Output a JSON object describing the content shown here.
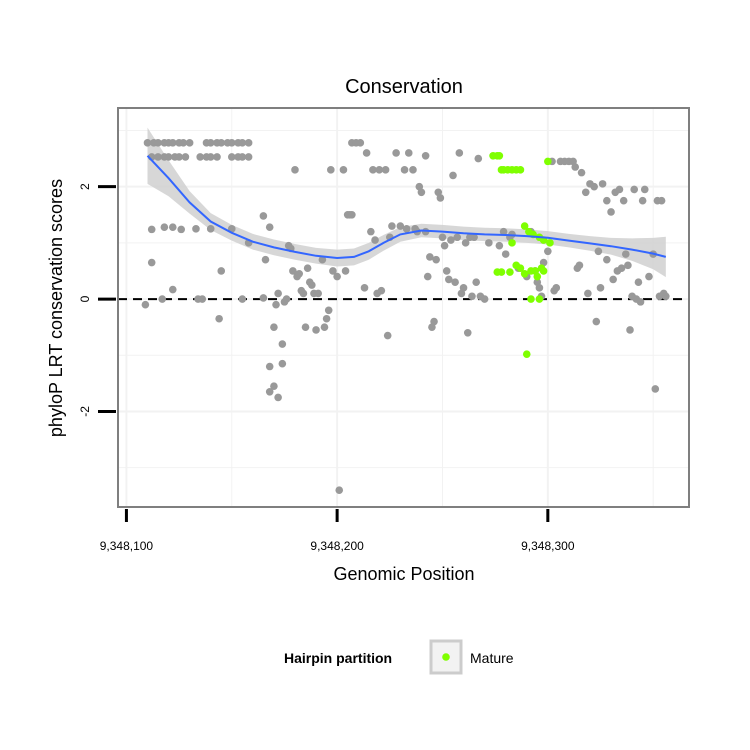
{
  "chart_data": {
    "type": "scatter",
    "title": "Conservation",
    "xlabel": "Genomic Position",
    "ylabel": "phyloP LRT conservation scores",
    "xlim": [
      9348096,
      9348367
    ],
    "ylim": [
      -3.7,
      3.4
    ],
    "x_ticks": [
      9348100,
      9348200,
      9348300
    ],
    "x_tick_labels": [
      "9,348,100",
      "9,348,200",
      "9,348,300"
    ],
    "y_ticks": [
      -2,
      0,
      2
    ],
    "y_tick_labels": [
      "-2",
      "0",
      "2"
    ],
    "grid": true,
    "reference_line": {
      "y": 0,
      "style": "dashed"
    },
    "legend": {
      "title": "Hairpin partition",
      "entries": [
        {
          "label": "Mature",
          "color": "#7fff00"
        }
      ],
      "placement": "bottom"
    },
    "colors": {
      "other": "#999999",
      "mature": "#7fff00",
      "smooth": "#3366ff",
      "ribbon": "#d0d0d0",
      "panel_border": "#7f7f7f",
      "grid": "#f2f2f2"
    },
    "series": [
      {
        "name": "Other",
        "points": [
          [
            9348110,
            2.78
          ],
          [
            9348113,
            2.78
          ],
          [
            9348115,
            2.78
          ],
          [
            9348118,
            2.78
          ],
          [
            9348120,
            2.78
          ],
          [
            9348122,
            2.78
          ],
          [
            9348125,
            2.78
          ],
          [
            9348127,
            2.78
          ],
          [
            9348130,
            2.78
          ],
          [
            9348138,
            2.78
          ],
          [
            9348140,
            2.78
          ],
          [
            9348143,
            2.78
          ],
          [
            9348145,
            2.78
          ],
          [
            9348148,
            2.78
          ],
          [
            9348150,
            2.78
          ],
          [
            9348153,
            2.78
          ],
          [
            9348155,
            2.78
          ],
          [
            9348158,
            2.78
          ],
          [
            9348112,
            2.53
          ],
          [
            9348115,
            2.53
          ],
          [
            9348118,
            2.53
          ],
          [
            9348120,
            2.53
          ],
          [
            9348123,
            2.53
          ],
          [
            9348125,
            2.53
          ],
          [
            9348128,
            2.53
          ],
          [
            9348135,
            2.53
          ],
          [
            9348138,
            2.53
          ],
          [
            9348140,
            2.53
          ],
          [
            9348143,
            2.53
          ],
          [
            9348150,
            2.53
          ],
          [
            9348153,
            2.53
          ],
          [
            9348155,
            2.53
          ],
          [
            9348158,
            2.53
          ],
          [
            9348165,
            1.48
          ],
          [
            9348168,
            1.28
          ],
          [
            9348122,
            1.28
          ],
          [
            9348126,
            1.24
          ],
          [
            9348112,
            1.24
          ],
          [
            9348118,
            1.28
          ],
          [
            9348133,
            1.25
          ],
          [
            9348140,
            1.25
          ],
          [
            9348150,
            1.25
          ],
          [
            9348158,
            1.0
          ],
          [
            9348112,
            0.65
          ],
          [
            9348117,
            0.0
          ],
          [
            9348122,
            0.17
          ],
          [
            9348134,
            0.0
          ],
          [
            9348136,
            0.0
          ],
          [
            9348144,
            -0.35
          ],
          [
            9348145,
            0.5
          ],
          [
            9348109,
            -0.1
          ],
          [
            9348155,
            0.0
          ],
          [
            9348165,
            0.02
          ],
          [
            9348166,
            0.7
          ],
          [
            9348172,
            0.1
          ],
          [
            9348168,
            -1.2
          ],
          [
            9348170,
            -1.55
          ],
          [
            9348168,
            -1.65
          ],
          [
            9348172,
            -1.75
          ],
          [
            9348170,
            -0.5
          ],
          [
            9348174,
            -0.8
          ],
          [
            9348174,
            -1.15
          ],
          [
            9348171,
            -0.1
          ],
          [
            9348175,
            -0.05
          ],
          [
            9348176,
            0.0
          ],
          [
            9348177,
            0.95
          ],
          [
            9348178,
            0.9
          ],
          [
            9348179,
            0.5
          ],
          [
            9348180,
            2.3
          ],
          [
            9348181,
            0.4
          ],
          [
            9348182,
            0.45
          ],
          [
            9348183,
            0.15
          ],
          [
            9348184,
            0.1
          ],
          [
            9348185,
            -0.5
          ],
          [
            9348186,
            0.55
          ],
          [
            9348187,
            0.3
          ],
          [
            9348188,
            0.25
          ],
          [
            9348189,
            0.1
          ],
          [
            9348190,
            -0.55
          ],
          [
            9348191,
            0.1
          ],
          [
            9348193,
            0.7
          ],
          [
            9348194,
            -0.5
          ],
          [
            9348195,
            -0.35
          ],
          [
            9348196,
            -0.2
          ],
          [
            9348197,
            2.3
          ],
          [
            9348198,
            0.5
          ],
          [
            9348200,
            0.4
          ],
          [
            9348203,
            2.3
          ],
          [
            9348201,
            -3.4
          ],
          [
            9348204,
            0.5
          ],
          [
            9348205,
            1.5
          ],
          [
            9348206,
            1.5
          ],
          [
            9348207,
            1.5
          ],
          [
            9348207,
            2.78
          ],
          [
            9348209,
            2.78
          ],
          [
            9348211,
            2.78
          ],
          [
            9348213,
            0.2
          ],
          [
            9348214,
            2.6
          ],
          [
            9348216,
            1.2
          ],
          [
            9348217,
            2.3
          ],
          [
            9348218,
            1.05
          ],
          [
            9348219,
            0.1
          ],
          [
            9348220,
            2.3
          ],
          [
            9348221,
            0.15
          ],
          [
            9348223,
            2.3
          ],
          [
            9348224,
            -0.65
          ],
          [
            9348225,
            1.1
          ],
          [
            9348226,
            1.3
          ],
          [
            9348228,
            2.6
          ],
          [
            9348230,
            1.3
          ],
          [
            9348232,
            2.3
          ],
          [
            9348233,
            1.25
          ],
          [
            9348234,
            2.6
          ],
          [
            9348236,
            2.3
          ],
          [
            9348237,
            1.25
          ],
          [
            9348238,
            1.2
          ],
          [
            9348239,
            2.0
          ],
          [
            9348240,
            1.9
          ],
          [
            9348242,
            1.2
          ],
          [
            9348242,
            2.55
          ],
          [
            9348243,
            0.4
          ],
          [
            9348244,
            0.75
          ],
          [
            9348245,
            -0.5
          ],
          [
            9348246,
            -0.4
          ],
          [
            9348247,
            0.7
          ],
          [
            9348248,
            1.9
          ],
          [
            9348249,
            1.8
          ],
          [
            9348250,
            1.1
          ],
          [
            9348251,
            0.95
          ],
          [
            9348252,
            0.5
          ],
          [
            9348253,
            0.35
          ],
          [
            9348254,
            1.05
          ],
          [
            9348255,
            2.2
          ],
          [
            9348256,
            0.3
          ],
          [
            9348257,
            1.1
          ],
          [
            9348258,
            2.6
          ],
          [
            9348259,
            0.1
          ],
          [
            9348260,
            0.2
          ],
          [
            9348261,
            1.0
          ],
          [
            9348262,
            -0.6
          ],
          [
            9348263,
            1.1
          ],
          [
            9348264,
            0.05
          ],
          [
            9348265,
            1.1
          ],
          [
            9348266,
            0.3
          ],
          [
            9348267,
            2.5
          ],
          [
            9348268,
            0.05
          ],
          [
            9348270,
            0.0
          ],
          [
            9348272,
            1.0
          ],
          [
            9348277,
            0.95
          ],
          [
            9348279,
            1.2
          ],
          [
            9348280,
            0.8
          ],
          [
            9348282,
            1.1
          ],
          [
            9348283,
            1.15
          ],
          [
            9348286,
            0.55
          ],
          [
            9348290,
            0.4
          ],
          [
            9348292,
            1.2
          ],
          [
            9348294,
            0.5
          ],
          [
            9348295,
            0.3
          ],
          [
            9348296,
            0.2
          ],
          [
            9348297,
            0.05
          ],
          [
            9348298,
            0.65
          ],
          [
            9348300,
            0.85
          ],
          [
            9348302,
            2.45
          ],
          [
            9348303,
            0.15
          ],
          [
            9348304,
            0.2
          ],
          [
            9348306,
            2.45
          ],
          [
            9348308,
            2.45
          ],
          [
            9348310,
            2.45
          ],
          [
            9348312,
            2.45
          ],
          [
            9348313,
            2.35
          ],
          [
            9348314,
            0.55
          ],
          [
            9348315,
            0.6
          ],
          [
            9348316,
            2.25
          ],
          [
            9348318,
            1.9
          ],
          [
            9348319,
            0.1
          ],
          [
            9348320,
            2.05
          ],
          [
            9348322,
            2.0
          ],
          [
            9348323,
            -0.4
          ],
          [
            9348324,
            0.85
          ],
          [
            9348325,
            0.2
          ],
          [
            9348326,
            2.05
          ],
          [
            9348328,
            1.75
          ],
          [
            9348328,
            0.7
          ],
          [
            9348330,
            1.55
          ],
          [
            9348331,
            0.35
          ],
          [
            9348332,
            1.9
          ],
          [
            9348333,
            0.5
          ],
          [
            9348334,
            1.95
          ],
          [
            9348335,
            0.55
          ],
          [
            9348336,
            1.75
          ],
          [
            9348337,
            0.8
          ],
          [
            9348338,
            0.6
          ],
          [
            9348339,
            -0.55
          ],
          [
            9348340,
            0.05
          ],
          [
            9348341,
            1.95
          ],
          [
            9348342,
            0.0
          ],
          [
            9348343,
            0.3
          ],
          [
            9348344,
            -0.05
          ],
          [
            9348345,
            1.75
          ],
          [
            9348346,
            1.95
          ],
          [
            9348348,
            0.4
          ],
          [
            9348350,
            0.8
          ],
          [
            9348351,
            -1.6
          ],
          [
            9348352,
            1.75
          ],
          [
            9348353,
            0.05
          ],
          [
            9348354,
            1.75
          ],
          [
            9348355,
            0.1
          ],
          [
            9348356,
            0.05
          ]
        ]
      },
      {
        "name": "Mature",
        "points": [
          [
            9348274,
            2.55
          ],
          [
            9348276,
            2.55
          ],
          [
            9348277,
            2.55
          ],
          [
            9348278,
            2.3
          ],
          [
            9348279,
            2.3
          ],
          [
            9348281,
            2.3
          ],
          [
            9348283,
            2.3
          ],
          [
            9348285,
            2.3
          ],
          [
            9348287,
            2.3
          ],
          [
            9348300,
            2.45
          ],
          [
            9348276,
            0.48
          ],
          [
            9348278,
            0.48
          ],
          [
            9348282,
            0.48
          ],
          [
            9348285,
            0.6
          ],
          [
            9348287,
            0.55
          ],
          [
            9348289,
            0.45
          ],
          [
            9348292,
            0.5
          ],
          [
            9348294,
            0.5
          ],
          [
            9348295,
            0.4
          ],
          [
            9348297,
            0.55
          ],
          [
            9348298,
            0.5
          ],
          [
            9348283,
            1.0
          ],
          [
            9348289,
            1.3
          ],
          [
            9348291,
            1.2
          ],
          [
            9348293,
            1.15
          ],
          [
            9348296,
            1.1
          ],
          [
            9348298,
            1.05
          ],
          [
            9348301,
            1.0
          ],
          [
            9348290,
            -0.98
          ],
          [
            9348292,
            0.0
          ],
          [
            9348296,
            0.0
          ]
        ]
      }
    ],
    "smooth": [
      [
        9348110,
        2.55
      ],
      [
        9348120,
        2.15
      ],
      [
        9348130,
        1.72
      ],
      [
        9348140,
        1.38
      ],
      [
        9348150,
        1.18
      ],
      [
        9348160,
        1.02
      ],
      [
        9348170,
        0.92
      ],
      [
        9348180,
        0.84
      ],
      [
        9348190,
        0.77
      ],
      [
        9348200,
        0.73
      ],
      [
        9348208,
        0.75
      ],
      [
        9348215,
        0.85
      ],
      [
        9348222,
        1.0
      ],
      [
        9348230,
        1.15
      ],
      [
        9348240,
        1.22
      ],
      [
        9348250,
        1.2
      ],
      [
        9348260,
        1.17
      ],
      [
        9348270,
        1.15
      ],
      [
        9348280,
        1.14
      ],
      [
        9348290,
        1.12
      ],
      [
        9348300,
        1.09
      ],
      [
        9348310,
        1.04
      ],
      [
        9348320,
        0.99
      ],
      [
        9348330,
        0.94
      ],
      [
        9348340,
        0.88
      ],
      [
        9348350,
        0.81
      ],
      [
        9348356,
        0.75
      ]
    ],
    "ribbon_halfwidth": [
      0.5,
      0.32,
      0.2,
      0.15,
      0.14,
      0.14,
      0.14,
      0.14,
      0.14,
      0.15,
      0.15,
      0.15,
      0.14,
      0.13,
      0.12,
      0.12,
      0.12,
      0.12,
      0.12,
      0.12,
      0.12,
      0.12,
      0.13,
      0.15,
      0.2,
      0.28,
      0.36
    ]
  }
}
